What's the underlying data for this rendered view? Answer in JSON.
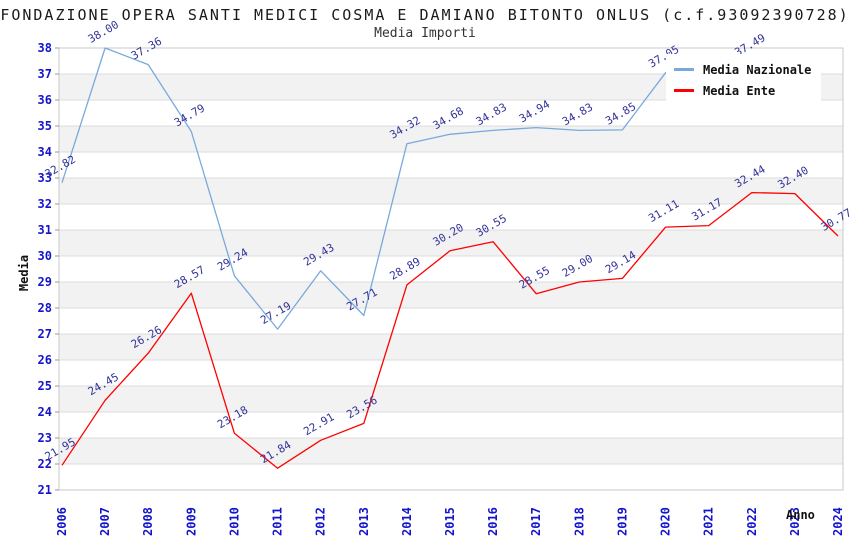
{
  "header": {
    "title": "FONDAZIONE OPERA SANTI MEDICI COSMA E DAMIANO BITONTO ONLUS (c.f.93092390728)",
    "subtitle": "Media Importi"
  },
  "axes": {
    "ylabel": "Media",
    "xlabel": "Anno"
  },
  "legend": {
    "position": "top-right",
    "items": [
      {
        "label": "Media Nazionale",
        "color": "#79a9dc"
      },
      {
        "label": "Media Ente",
        "color": "#ff0000"
      }
    ]
  },
  "chart_data": {
    "type": "line",
    "title": "FONDAZIONE OPERA SANTI MEDICI COSMA E DAMIANO BITONTO ONLUS (c.f.93092390728)",
    "subtitle": "Media Importi",
    "xlabel": "Anno",
    "ylabel": "Media",
    "x": [
      "2006",
      "2007",
      "2008",
      "2009",
      "2010",
      "2011",
      "2012",
      "2013",
      "2014",
      "2015",
      "2016",
      "2017",
      "2018",
      "2019",
      "2020",
      "2021",
      "2022",
      "2023",
      "2024"
    ],
    "ylim": [
      21,
      38
    ],
    "ytick_step": 1,
    "grid": "horizontal gridlines with alternating gray bands",
    "legend_position": "top-right",
    "series": [
      {
        "name": "Media Nazionale",
        "color": "#79a9dc",
        "values": [
          32.82,
          38.0,
          37.36,
          34.79,
          29.24,
          27.19,
          29.43,
          27.71,
          34.32,
          34.68,
          34.83,
          34.94,
          34.83,
          34.85,
          37.05,
          null,
          37.49,
          null,
          null
        ]
      },
      {
        "name": "Media Ente",
        "color": "#ff0000",
        "values": [
          21.95,
          24.45,
          26.26,
          28.57,
          23.18,
          21.84,
          22.91,
          23.56,
          28.89,
          30.2,
          30.55,
          28.55,
          29.0,
          29.14,
          31.11,
          31.17,
          32.44,
          32.4,
          30.77
        ]
      }
    ],
    "colors": {
      "tick_label": "#1414cc",
      "data_label": "#333399",
      "band": "#f2f2f2",
      "grid": "#dcdcdc",
      "border": "#c9c9c9",
      "axis_tick": "#999999"
    }
  }
}
